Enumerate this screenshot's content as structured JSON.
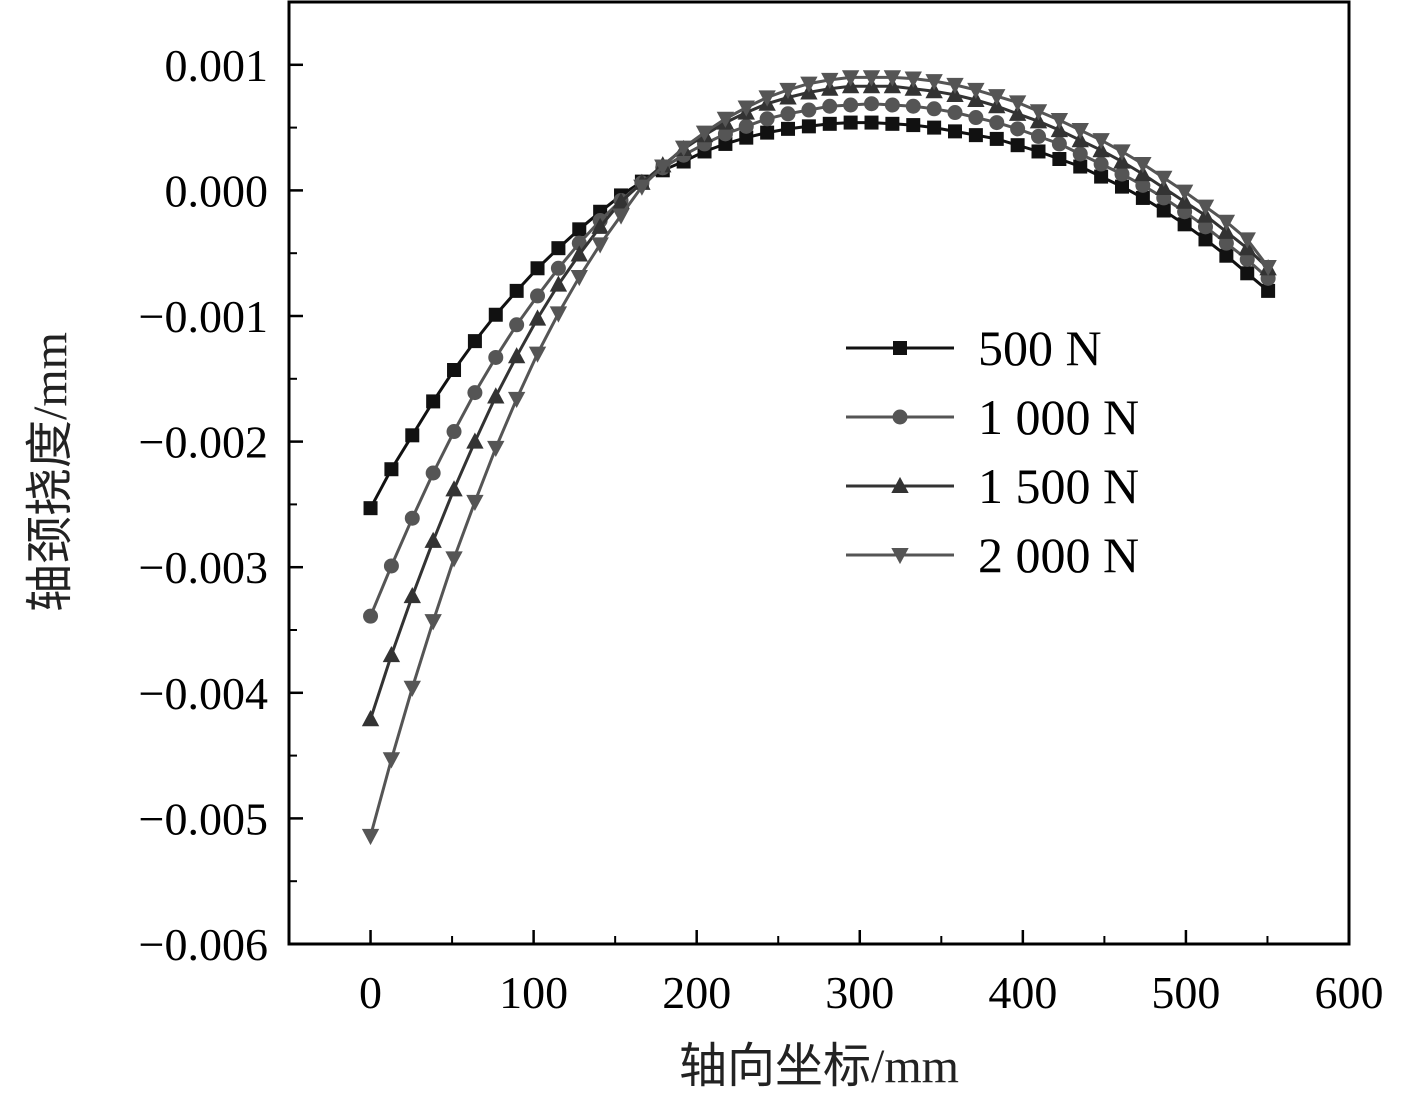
{
  "chart_data": {
    "type": "line",
    "xlabel": "轴向坐标/mm",
    "ylabel": "轴颈挠度/mm",
    "xlim": [
      -50,
      600
    ],
    "ylim": [
      -0.006,
      0.0015
    ],
    "xticks": [
      0,
      100,
      200,
      300,
      400,
      500,
      600
    ],
    "xtick_labels": [
      "0",
      "100",
      "200",
      "300",
      "400",
      "500",
      "600"
    ],
    "yticks": [
      0.001,
      0.0,
      -0.001,
      -0.002,
      -0.003,
      -0.004,
      -0.005,
      -0.006
    ],
    "ytick_labels": [
      "0.001",
      "0.000",
      "−0.001",
      "−0.002",
      "−0.003",
      "−0.004",
      "−0.005",
      "−0.006"
    ],
    "grid": false,
    "legend_position": "center-right",
    "series": [
      {
        "name": "500 N",
        "marker": "square",
        "color": "#111111",
        "x": [
          0,
          12.8,
          25.6,
          38.4,
          51.2,
          64,
          76.8,
          89.6,
          102.4,
          115.2,
          128,
          140.8,
          153.6,
          166.4,
          179.2,
          192,
          204.8,
          217.6,
          230.4,
          243.2,
          256,
          268.8,
          281.6,
          294.4,
          307.2,
          320,
          332.8,
          345.6,
          358.4,
          371.2,
          384,
          396.8,
          409.6,
          422.4,
          435.2,
          448,
          460.8,
          473.6,
          486.4,
          499.2,
          512,
          524.8,
          537.6,
          550.4
        ],
        "y": [
          -0.00253,
          -0.00222,
          -0.00195,
          -0.00168,
          -0.00143,
          -0.0012,
          -0.00099,
          -0.0008,
          -0.00062,
          -0.00046,
          -0.00031,
          -0.00017,
          -4e-05,
          7e-05,
          0.00016,
          0.00023,
          0.00031,
          0.00037,
          0.00042,
          0.00046,
          0.00049,
          0.00051,
          0.00053,
          0.00054,
          0.00054,
          0.00053,
          0.00052,
          0.0005,
          0.00047,
          0.00044,
          0.00041,
          0.00036,
          0.00031,
          0.00025,
          0.00019,
          0.00011,
          3e-05,
          -6e-05,
          -0.00016,
          -0.00027,
          -0.00039,
          -0.00052,
          -0.00066,
          -0.0008
        ]
      },
      {
        "name": "1 000 N",
        "marker": "circle",
        "color": "#555555",
        "x": [
          0,
          12.8,
          25.6,
          38.4,
          51.2,
          64,
          76.8,
          89.6,
          102.4,
          115.2,
          128,
          140.8,
          153.6,
          166.4,
          179.2,
          192,
          204.8,
          217.6,
          230.4,
          243.2,
          256,
          268.8,
          281.6,
          294.4,
          307.2,
          320,
          332.8,
          345.6,
          358.4,
          371.2,
          384,
          396.8,
          409.6,
          422.4,
          435.2,
          448,
          460.8,
          473.6,
          486.4,
          499.2,
          512,
          524.8,
          537.6,
          550.4
        ],
        "y": [
          -0.00339,
          -0.00299,
          -0.00261,
          -0.00225,
          -0.00192,
          -0.00161,
          -0.00133,
          -0.00107,
          -0.00084,
          -0.00062,
          -0.00042,
          -0.00024,
          -8e-05,
          6e-05,
          0.00018,
          0.00028,
          0.00037,
          0.00045,
          0.00051,
          0.00057,
          0.00061,
          0.00064,
          0.00067,
          0.00068,
          0.00069,
          0.00068,
          0.00067,
          0.00065,
          0.00062,
          0.00058,
          0.00054,
          0.00049,
          0.00043,
          0.00037,
          0.00029,
          0.00021,
          0.00013,
          4e-05,
          -6e-05,
          -0.00017,
          -0.00029,
          -0.00042,
          -0.00055,
          -0.0007
        ]
      },
      {
        "name": "1 500 N",
        "marker": "triangle-up",
        "color": "#333333",
        "x": [
          0,
          12.8,
          25.6,
          38.4,
          51.2,
          64,
          76.8,
          89.6,
          102.4,
          115.2,
          128,
          140.8,
          153.6,
          166.4,
          179.2,
          192,
          204.8,
          217.6,
          230.4,
          243.2,
          256,
          268.8,
          281.6,
          294.4,
          307.2,
          320,
          332.8,
          345.6,
          358.4,
          371.2,
          384,
          396.8,
          409.6,
          422.4,
          435.2,
          448,
          460.8,
          473.6,
          486.4,
          499.2,
          512,
          524.8,
          537.6,
          550.4
        ],
        "y": [
          -0.00421,
          -0.0037,
          -0.00323,
          -0.00279,
          -0.00238,
          -0.002,
          -0.00164,
          -0.00132,
          -0.00102,
          -0.00075,
          -0.00051,
          -0.00029,
          -9e-05,
          6e-05,
          0.0002,
          0.00033,
          0.00044,
          0.00054,
          0.00062,
          0.00069,
          0.00074,
          0.00078,
          0.00081,
          0.00083,
          0.00083,
          0.00083,
          0.00081,
          0.00079,
          0.00076,
          0.00072,
          0.00067,
          0.00061,
          0.00055,
          0.00048,
          0.0004,
          0.00032,
          0.00023,
          0.00013,
          2e-05,
          -9e-05,
          -0.0002,
          -0.00033,
          -0.00046,
          -0.00062
        ]
      },
      {
        "name": "2 000 N",
        "marker": "triangle-down",
        "color": "#555555",
        "x": [
          0,
          12.8,
          25.6,
          38.4,
          51.2,
          64,
          76.8,
          89.6,
          102.4,
          115.2,
          128,
          140.8,
          153.6,
          166.4,
          179.2,
          192,
          204.8,
          217.6,
          230.4,
          243.2,
          256,
          268.8,
          281.6,
          294.4,
          307.2,
          320,
          332.8,
          345.6,
          358.4,
          371.2,
          384,
          396.8,
          409.6,
          422.4,
          435.2,
          448,
          460.8,
          473.6,
          486.4,
          499.2,
          512,
          524.8,
          537.6,
          550.4
        ],
        "y": [
          -0.00514,
          -0.00453,
          -0.00396,
          -0.00343,
          -0.00293,
          -0.00248,
          -0.00205,
          -0.00166,
          -0.0013,
          -0.00098,
          -0.00069,
          -0.00043,
          -0.0002,
          3e-05,
          0.00019,
          0.00034,
          0.00046,
          0.00057,
          0.00066,
          0.00074,
          0.0008,
          0.00085,
          0.00088,
          0.0009,
          0.0009,
          0.0009,
          0.00089,
          0.00087,
          0.00084,
          0.0008,
          0.00075,
          0.0007,
          0.00063,
          0.00056,
          0.00048,
          0.0004,
          0.00031,
          0.00021,
          0.0001,
          -1e-05,
          -0.00013,
          -0.00025,
          -0.00039,
          -0.00061
        ]
      }
    ]
  }
}
